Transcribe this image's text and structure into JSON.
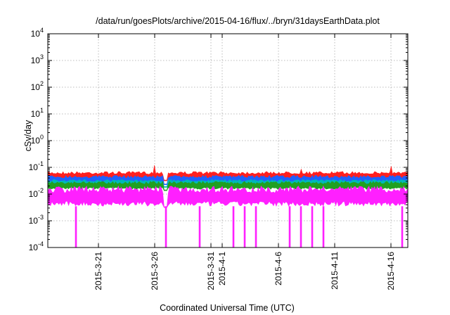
{
  "chart_data": {
    "type": "line",
    "title": "/data/run/goesPlots/archive/2015-04-16/flux/../bryn/31daysEarthData.plot",
    "xlabel": "Coordinated Universal Time (UTC)",
    "ylabel": "cSv/day",
    "y_scale": "log",
    "ylim": [
      0.0001,
      10000
    ],
    "xlim": [
      "2015-03-16T12:00",
      "2015-04-17T12:00"
    ],
    "y_ticks": [
      {
        "base": "10",
        "exp": "-4",
        "value": 0.0001
      },
      {
        "base": "10",
        "exp": "-3",
        "value": 0.001
      },
      {
        "base": "10",
        "exp": "-2",
        "value": 0.01
      },
      {
        "base": "10",
        "exp": "-1",
        "value": 0.1
      },
      {
        "base": "10",
        "exp": "0",
        "value": 1
      },
      {
        "base": "10",
        "exp": "1",
        "value": 10
      },
      {
        "base": "10",
        "exp": "2",
        "value": 100
      },
      {
        "base": "10",
        "exp": "3",
        "value": 1000
      },
      {
        "base": "10",
        "exp": "4",
        "value": 10000
      }
    ],
    "x_ticks": [
      {
        "date": "2015-03-21",
        "label": "2015-3-21"
      },
      {
        "date": "2015-03-26",
        "label": "2015-3-26"
      },
      {
        "date": "2015-03-31",
        "label": "2015-3-31"
      },
      {
        "date": "2015-04-01",
        "label": "2015-4-1"
      },
      {
        "date": "2015-04-06",
        "label": "2015-4-6"
      },
      {
        "date": "2015-04-11",
        "label": "2015-4-11"
      },
      {
        "date": "2015-04-16",
        "label": "2015-4-16"
      }
    ],
    "grid": true,
    "series": [
      {
        "color": "#ff2020",
        "band": [
          0.035,
          0.07
        ],
        "peaks": [
          [
            "2015-03-26",
            0.12
          ],
          [
            "2015-04-16",
            0.11
          ],
          [
            "2015-04-08",
            0.085
          ]
        ]
      },
      {
        "color": "#2060ff",
        "band": [
          0.025,
          0.05
        ],
        "peaks": []
      },
      {
        "color": "#00b8b8",
        "band": [
          0.02,
          0.035
        ],
        "peaks": []
      },
      {
        "color": "#20a020",
        "band": [
          0.015,
          0.03
        ],
        "peaks": []
      },
      {
        "color": "#ff20ff",
        "band": [
          0.0035,
          0.02
        ],
        "peaks": []
      }
    ],
    "gap": "2015-03-27",
    "dropouts": [
      {
        "date": "2015-03-19",
        "value": 0.0001
      },
      {
        "date": "2015-03-27",
        "value": 0.0001
      },
      {
        "date": "2015-03-30",
        "value": 0.0001
      },
      {
        "date": "2015-04-02",
        "value": 0.0001
      },
      {
        "date": "2015-04-03",
        "value": 0.0001
      },
      {
        "date": "2015-04-04",
        "value": 0.0001
      },
      {
        "date": "2015-04-07",
        "value": 0.0001
      },
      {
        "date": "2015-04-08",
        "value": 0.0001
      },
      {
        "date": "2015-04-09",
        "value": 0.0001
      },
      {
        "date": "2015-04-10",
        "value": 0.0001
      },
      {
        "date": "2015-04-17",
        "value": 0.0001
      }
    ]
  }
}
